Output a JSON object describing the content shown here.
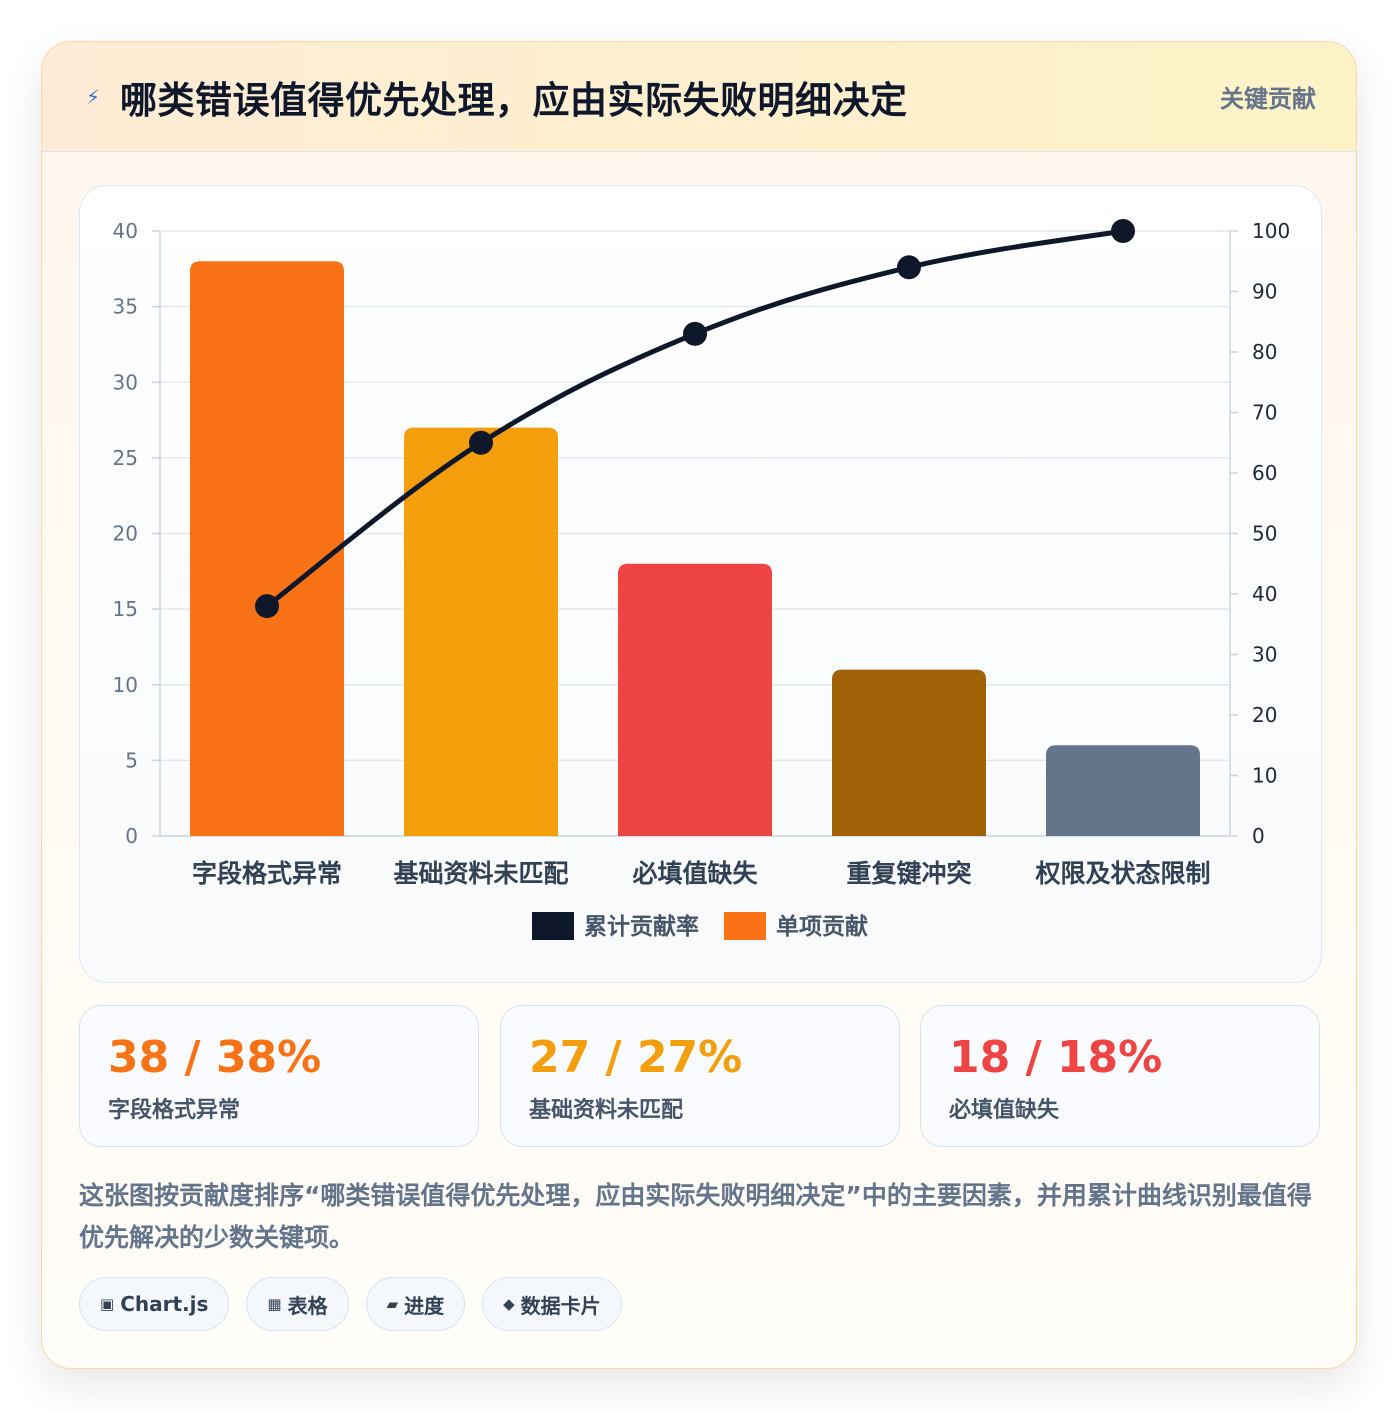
{
  "header": {
    "icon": "bolt-icon",
    "title": "哪类错误值得优先处理，应由实际失败明细决定",
    "tag": "关键贡献"
  },
  "chart_data": {
    "type": "bar",
    "categories": [
      "字段格式异常",
      "基础资料未匹配",
      "必填值缺失",
      "重复键冲突",
      "权限及状态限制"
    ],
    "series": [
      {
        "name": "单项贡献",
        "type": "bar",
        "axis": "left",
        "values": [
          38,
          27,
          18,
          11,
          6
        ],
        "colors": [
          "#f97316",
          "#f59e0b",
          "#ef4444",
          "#a16207",
          "#64748b"
        ]
      },
      {
        "name": "累计贡献率",
        "type": "line",
        "axis": "right",
        "values": [
          38,
          65,
          83,
          94,
          100
        ],
        "color": "#0f172a"
      }
    ],
    "y_left": {
      "min": 0,
      "max": 40,
      "ticks": [
        "0",
        "5",
        "10",
        "15",
        "20",
        "25",
        "30",
        "35",
        "40"
      ]
    },
    "y_right": {
      "min": 0,
      "max": 100,
      "ticks": [
        "0",
        "10",
        "20",
        "30",
        "40",
        "50",
        "60",
        "70",
        "80",
        "90",
        "100"
      ]
    },
    "legend": [
      {
        "label": "累计贡献率",
        "color": "#0f172a"
      },
      {
        "label": "单项贡献",
        "color": "#f97316"
      }
    ],
    "legend_position": "bottom",
    "grid": true
  },
  "stats": [
    {
      "value": "38 / 38%",
      "label": "字段格式异常",
      "color": "#f97316"
    },
    {
      "value": "27 / 27%",
      "label": "基础资料未匹配",
      "color": "#f59e0b"
    },
    {
      "value": "18 / 18%",
      "label": "必填值缺失",
      "color": "#ef4444"
    }
  ],
  "description": "这张图按贡献度排序“哪类错误值得优先处理，应由实际失败明细决定”中的主要因素，并用累计曲线识别最值得优先解决的少数关键项。",
  "pills": [
    {
      "icon": "▣",
      "icon_name": "chart-icon",
      "label": "Chart.js"
    },
    {
      "icon": "▦",
      "icon_name": "table-icon",
      "label": "表格"
    },
    {
      "icon": "▰",
      "icon_name": "progress-icon",
      "label": "进度"
    },
    {
      "icon": "◆",
      "icon_name": "data-card-icon",
      "label": "数据卡片"
    }
  ]
}
